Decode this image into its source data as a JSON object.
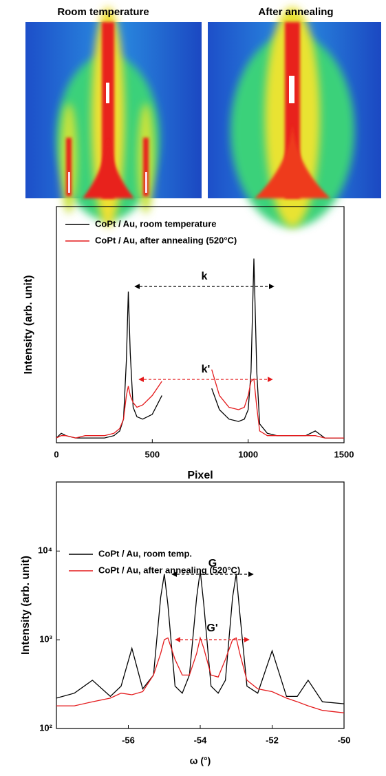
{
  "panels": {
    "left_title": "Room temperature",
    "right_title": "After annealing"
  },
  "chart_data": [
    {
      "type": "line",
      "xlabel": "Pixel",
      "ylabel": "Intensity (arb. unit)",
      "xlim": [
        0,
        1500
      ],
      "xticks": [
        0,
        500,
        1000,
        1500
      ],
      "ylim": [
        0,
        100
      ],
      "annotations": [
        "k",
        "k'"
      ],
      "x": [
        0,
        25,
        50,
        100,
        150,
        200,
        250,
        300,
        330,
        350,
        365,
        375,
        385,
        400,
        420,
        450,
        500,
        550,
        680,
        810,
        850,
        900,
        950,
        980,
        1000,
        1015,
        1030,
        1045,
        1060,
        1100,
        1150,
        1200,
        1250,
        1300,
        1350,
        1400,
        1450,
        1500
      ],
      "series": [
        {
          "name": "CoPt / Au, room temperature",
          "color": "#000000",
          "values": [
            2,
            4,
            3,
            2,
            2,
            2,
            2,
            3,
            5,
            10,
            35,
            64,
            38,
            15,
            11,
            10,
            12,
            20,
            null,
            23,
            14,
            10,
            9,
            10,
            14,
            30,
            78,
            30,
            8,
            4,
            3,
            3,
            3,
            3,
            5,
            2,
            2,
            2
          ]
        },
        {
          "name": "CoPt / Au, after annealing (520°C)",
          "color": "#e41a1c",
          "values": [
            2,
            3,
            3,
            2,
            3,
            3,
            3,
            4,
            6,
            10,
            20,
            24,
            20,
            17,
            15,
            16,
            20,
            26,
            null,
            31,
            20,
            15,
            14,
            15,
            20,
            26,
            27,
            15,
            5,
            3,
            3,
            3,
            3,
            3,
            3,
            2,
            2,
            2
          ]
        }
      ]
    },
    {
      "type": "line",
      "xlabel": "ω (°)",
      "ylabel": "Intensity (arb. unit)",
      "log_y": true,
      "xlim": [
        -58,
        -50
      ],
      "xticks": [
        -56,
        -54,
        -52,
        -50
      ],
      "ylim": [
        100,
        60000
      ],
      "yticks": [
        {
          "value": 100,
          "label": "10²"
        },
        {
          "value": 1000,
          "label": "10³"
        },
        {
          "value": 10000,
          "label": "10⁴"
        }
      ],
      "annotations": [
        "G",
        "G'"
      ],
      "x": [
        -58,
        -57.5,
        -57,
        -56.5,
        -56.2,
        -55.9,
        -55.6,
        -55.3,
        -55.1,
        -55,
        -54.9,
        -54.7,
        -54.5,
        -54.3,
        -54.1,
        -54,
        -53.9,
        -53.7,
        -53.5,
        -53.3,
        -53.1,
        -53,
        -52.9,
        -52.7,
        -52.4,
        -52,
        -51.6,
        -51.3,
        -51,
        -50.6,
        -50
      ],
      "series": [
        {
          "name": "CoPt / Au, room temp.",
          "color": "#000000",
          "values": [
            220,
            250,
            350,
            230,
            300,
            800,
            280,
            400,
            3000,
            5500,
            2500,
            300,
            250,
            400,
            3000,
            6000,
            2500,
            300,
            250,
            350,
            3000,
            5500,
            2000,
            300,
            250,
            750,
            230,
            230,
            350,
            200,
            190
          ]
        },
        {
          "name": "CoPt / Au, after annealing (520°C)",
          "color": "#e41a1c",
          "values": [
            180,
            180,
            200,
            220,
            250,
            240,
            260,
            400,
            700,
            1000,
            1050,
            600,
            400,
            400,
            700,
            1050,
            800,
            400,
            380,
            600,
            1000,
            1050,
            700,
            350,
            280,
            260,
            220,
            200,
            180,
            160,
            150
          ]
        }
      ]
    }
  ]
}
